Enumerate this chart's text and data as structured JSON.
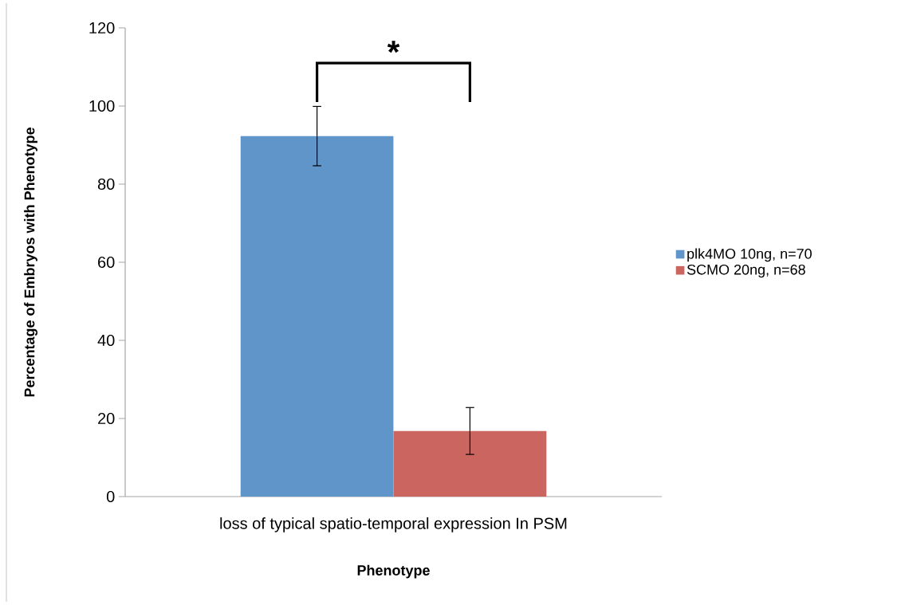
{
  "chart_data": {
    "type": "bar",
    "xlabel": "Phenotype",
    "ylabel": "Percentage of Embryos with Phenotype",
    "categories": [
      "loss of typical spatio-temporal expression In PSM"
    ],
    "series": [
      {
        "name": "plk4MO 10ng, n=70",
        "color": "#5f95c8",
        "values": [
          92.3
        ],
        "errors": [
          7.6
        ]
      },
      {
        "name": "SCMO 20ng, n=68",
        "color": "#cb6560",
        "values": [
          16.8
        ],
        "errors": [
          6.0
        ]
      }
    ],
    "ylim": [
      0,
      120
    ],
    "yticks": [
      0,
      20,
      40,
      60,
      80,
      100,
      120
    ],
    "grid": false,
    "legend": "right",
    "annotations": [
      "*"
    ]
  }
}
